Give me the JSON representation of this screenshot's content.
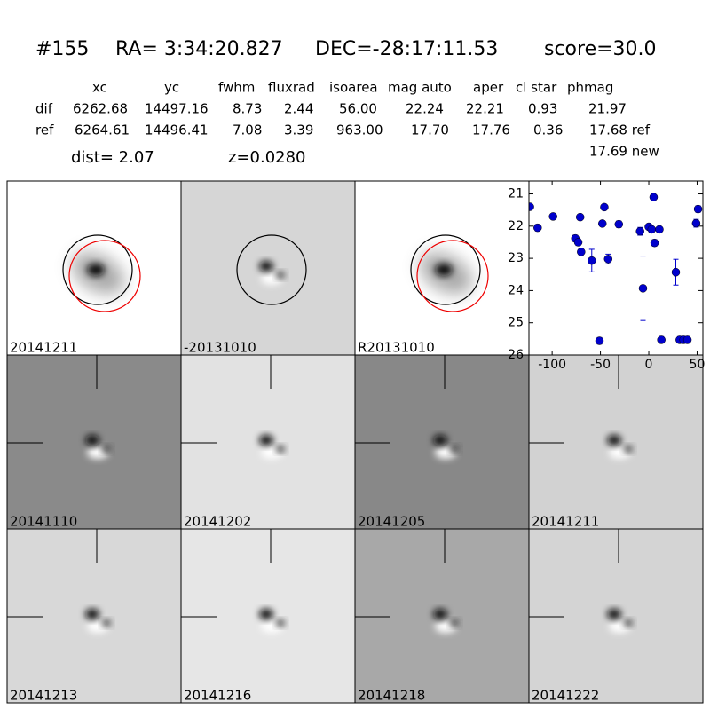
{
  "header": {
    "id": "#155",
    "ra": "RA= 3:34:20.827",
    "dec": "DEC=-28:17:11.53",
    "score": "score=30.0"
  },
  "table": {
    "columns": [
      "xc",
      "yc",
      "fwhm",
      "fluxrad",
      "isoarea",
      "mag auto",
      "aper",
      "cl star",
      "phmag"
    ],
    "rows": [
      {
        "label": "dif",
        "cells": [
          "6262.68",
          "14497.16",
          "8.73",
          "2.44",
          "56.00",
          "22.24",
          "22.21",
          "0.93",
          "21.97"
        ]
      },
      {
        "label": "ref",
        "cells": [
          "6264.61",
          "14496.41",
          "7.08",
          "3.39",
          "963.00",
          "17.70",
          "17.76",
          "0.36",
          "17.68 ref"
        ]
      }
    ],
    "extra": "17.69 new"
  },
  "dist": "dist=  2.07",
  "z": "z=0.0280",
  "stamps": [
    {
      "label": "20141211",
      "background": "#ffffff"
    },
    {
      "label": "-20131010",
      "background": "#d6d6d6"
    },
    {
      "label": "R20131010",
      "background": "#ffffff"
    },
    {
      "label": "20141110",
      "background": "#8a8a8a"
    },
    {
      "label": "20141202",
      "background": "#e2e2e2"
    },
    {
      "label": "20141205",
      "background": "#888888"
    },
    {
      "label": "20141211",
      "background": "#d2d2d2",
      "label_color": "#ff0000"
    },
    {
      "label": "20141213",
      "background": "#d8d8d8"
    },
    {
      "label": "20141216",
      "background": "#e6e6e6"
    },
    {
      "label": "20141218",
      "background": "#a8a8a8"
    },
    {
      "label": "20141222",
      "background": "#d4d4d4"
    }
  ],
  "chart_data": {
    "type": "scatter",
    "color": "#0000cc",
    "x": [
      -123,
      -115,
      -99,
      -76,
      -73,
      -71,
      -70,
      -59,
      -51,
      -48,
      -46,
      -42,
      -31,
      -9,
      -6,
      0,
      3,
      5,
      6,
      11,
      13,
      28,
      32,
      36,
      40,
      49,
      51
    ],
    "values": [
      21.4,
      22.05,
      21.7,
      22.38,
      22.5,
      21.72,
      22.8,
      23.07,
      25.56,
      21.92,
      21.41,
      23.02,
      21.94,
      22.16,
      23.93,
      22.02,
      22.1,
      21.1,
      22.52,
      22.1,
      25.53,
      23.43,
      25.53,
      25.53,
      25.53,
      21.91,
      21.47
    ],
    "errors": [
      0.08,
      0.1,
      0.05,
      0.1,
      0.1,
      0.06,
      0.12,
      0.35,
      0.1,
      0.06,
      0.05,
      0.15,
      0.1,
      0.12,
      1.0,
      0.08,
      0.08,
      0.05,
      0.1,
      0.08,
      0.1,
      0.4,
      0.1,
      0.1,
      0.1,
      0.12,
      0.1
    ],
    "xlim": [
      -124,
      56
    ],
    "ylim": [
      26,
      20.6
    ],
    "xticks": [
      -100,
      -50,
      0,
      50
    ],
    "yticks": [
      21,
      22,
      23,
      24,
      25,
      26
    ]
  }
}
